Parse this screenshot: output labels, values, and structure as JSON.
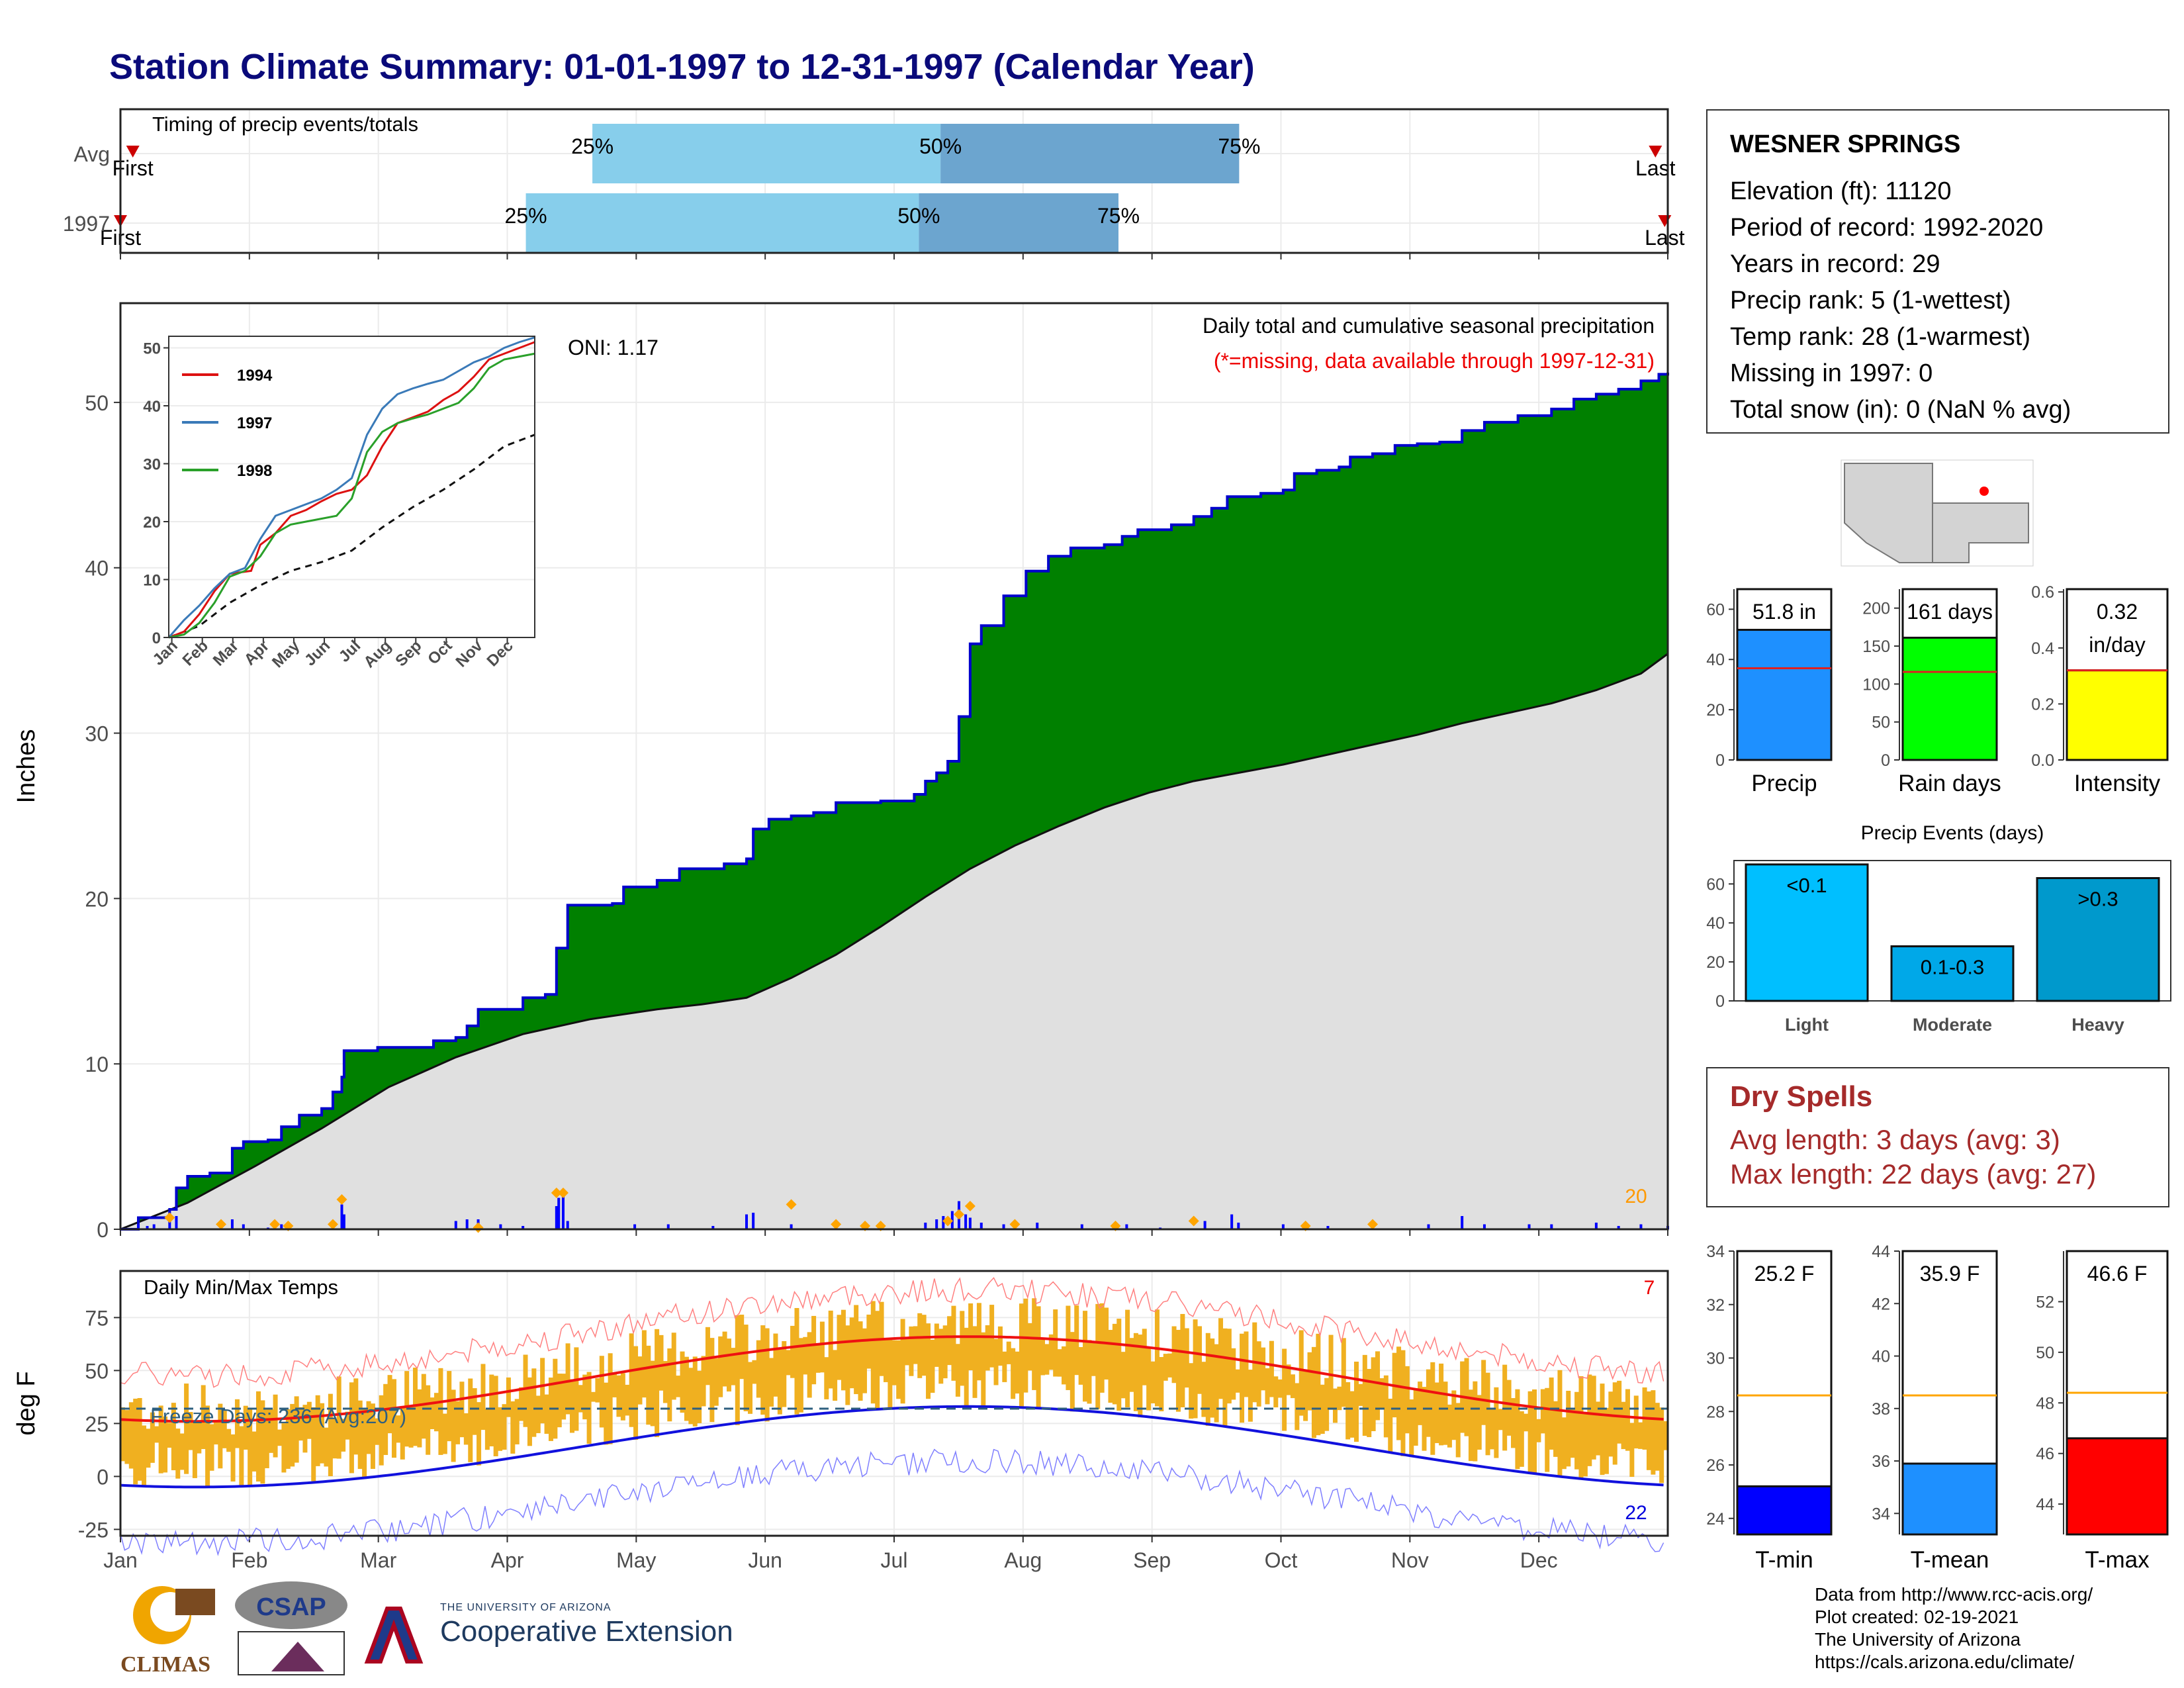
{
  "title": "Station Climate Summary: 01-01-1997 to 12-31-1997 (Calendar Year)",
  "colors": {
    "title": "#0a0a7a",
    "precip_area": "#008000",
    "precip_line": "#0000cc",
    "normal_area": "#e0e0e0",
    "light_blue": "#87ceeb",
    "mid_blue": "#6ca5cf",
    "temp_bar": "#f0b020",
    "tmax_line": "#ee1111",
    "tmin_line": "#1111dd",
    "orange_marker": "#ffa500"
  },
  "timing": {
    "label": "Timing of precip events/totals",
    "rows": [
      {
        "name": "Avg",
        "p25_label": "25%",
        "p50_label": "50%",
        "p75_label": "75%",
        "first": "First",
        "last": "Last",
        "p25": 0.305,
        "p50": 0.53,
        "p75": 0.723,
        "first_frac": 0.008,
        "last_frac": 0.992
      },
      {
        "name": "1997",
        "p25_label": "25%",
        "p50_label": "50%",
        "p75_label": "75%",
        "first": "First",
        "last": "Last",
        "p25": 0.262,
        "p50": 0.516,
        "p75": 0.645,
        "first_frac": 0.0,
        "last_frac": 0.998
      }
    ]
  },
  "station": {
    "name": "WESNER SPRINGS",
    "lines": [
      "Elevation (ft): 11120",
      "Period of record: 1992-2020",
      "Years in record: 29",
      "Precip rank: 5 (1-wettest)",
      "Temp rank: 28 (1-warmest)",
      "Missing in 1997: 0",
      "Total snow (in): 0 (NaN % avg)"
    ]
  },
  "main_chart": {
    "ylabel": "Inches",
    "caption1": "Daily total and cumulative seasonal precipitation",
    "caption2": "(*=missing, data available through 1997-12-31)",
    "oni": "ONI: 1.17",
    "corner_count": "20",
    "ylim": [
      0,
      56
    ],
    "yticks": [
      0,
      10,
      20,
      30,
      40,
      50
    ],
    "cum_1997": [
      [
        0,
        0
      ],
      [
        8,
        0.7
      ],
      [
        22,
        1.2
      ],
      [
        25,
        2.5
      ],
      [
        30,
        3.2
      ],
      [
        40,
        3.4
      ],
      [
        50,
        4.9
      ],
      [
        55,
        5.3
      ],
      [
        66,
        5.4
      ],
      [
        72,
        6.2
      ],
      [
        80,
        6.9
      ],
      [
        90,
        7.3
      ],
      [
        95,
        8.3
      ],
      [
        99,
        9.2
      ],
      [
        100,
        10.8
      ],
      [
        115,
        11
      ],
      [
        140,
        11.4
      ],
      [
        150,
        11.6
      ],
      [
        155,
        12.3
      ],
      [
        160,
        13.3
      ],
      [
        180,
        14
      ],
      [
        190,
        14.2
      ],
      [
        195,
        17
      ],
      [
        200,
        19.6
      ],
      [
        220,
        19.7
      ],
      [
        225,
        20.7
      ],
      [
        240,
        21.1
      ],
      [
        250,
        21.8
      ],
      [
        270,
        22.1
      ],
      [
        280,
        22.4
      ],
      [
        283,
        24.2
      ],
      [
        290,
        24.8
      ],
      [
        300,
        25
      ],
      [
        310,
        25.2
      ],
      [
        320,
        25.8
      ],
      [
        340,
        25.9
      ],
      [
        355,
        26.3
      ],
      [
        360,
        27.1
      ],
      [
        365,
        27.6
      ],
      [
        370,
        28.3
      ],
      [
        375,
        31
      ],
      [
        380,
        35.4
      ],
      [
        385,
        36.5
      ],
      [
        395,
        38.3
      ],
      [
        405,
        39.8
      ],
      [
        415,
        40.7
      ],
      [
        425,
        41.2
      ],
      [
        440,
        41.4
      ],
      [
        448,
        41.9
      ],
      [
        455,
        42.3
      ],
      [
        470,
        42.6
      ],
      [
        480,
        43.1
      ],
      [
        488,
        43.6
      ],
      [
        495,
        44.3
      ],
      [
        510,
        44.5
      ],
      [
        520,
        44.7
      ],
      [
        525,
        45.7
      ],
      [
        535,
        45.9
      ],
      [
        545,
        46.1
      ],
      [
        550,
        46.7
      ],
      [
        560,
        46.9
      ],
      [
        570,
        47.4
      ],
      [
        580,
        47.5
      ],
      [
        590,
        47.6
      ],
      [
        600,
        48.3
      ],
      [
        610,
        48.8
      ],
      [
        625,
        49.2
      ],
      [
        640,
        49.6
      ],
      [
        650,
        50.2
      ],
      [
        660,
        50.5
      ],
      [
        670,
        50.8
      ],
      [
        680,
        51.3
      ],
      [
        688,
        51.7
      ],
      [
        692,
        51.8
      ]
    ],
    "cum_normal": [
      [
        0,
        0
      ],
      [
        30,
        1.6
      ],
      [
        60,
        3.8
      ],
      [
        90,
        6.1
      ],
      [
        120,
        8.6
      ],
      [
        150,
        10.4
      ],
      [
        180,
        11.8
      ],
      [
        210,
        12.7
      ],
      [
        240,
        13.3
      ],
      [
        260,
        13.6
      ],
      [
        280,
        14
      ],
      [
        300,
        15.2
      ],
      [
        320,
        16.6
      ],
      [
        340,
        18.3
      ],
      [
        360,
        20.1
      ],
      [
        380,
        21.8
      ],
      [
        400,
        23.2
      ],
      [
        420,
        24.4
      ],
      [
        440,
        25.5
      ],
      [
        460,
        26.4
      ],
      [
        480,
        27.1
      ],
      [
        500,
        27.6
      ],
      [
        520,
        28.1
      ],
      [
        540,
        28.7
      ],
      [
        560,
        29.3
      ],
      [
        580,
        29.9
      ],
      [
        600,
        30.6
      ],
      [
        620,
        31.2
      ],
      [
        640,
        31.8
      ],
      [
        660,
        32.6
      ],
      [
        680,
        33.6
      ],
      [
        692,
        34.8
      ]
    ],
    "daily_bars": [
      [
        8,
        0.3
      ],
      [
        12,
        0.2
      ],
      [
        15,
        0.3
      ],
      [
        22,
        0.9
      ],
      [
        25,
        0.8
      ],
      [
        45,
        0.4
      ],
      [
        50,
        0.6
      ],
      [
        55,
        0.3
      ],
      [
        66,
        0.1
      ],
      [
        72,
        0.3
      ],
      [
        95,
        0.5
      ],
      [
        99,
        1.5
      ],
      [
        100,
        0.9
      ],
      [
        150,
        0.5
      ],
      [
        155,
        0.6
      ],
      [
        160,
        0.6
      ],
      [
        170,
        0.3
      ],
      [
        180,
        0.2
      ],
      [
        195,
        1.4
      ],
      [
        196,
        1.9
      ],
      [
        198,
        2.1
      ],
      [
        200,
        0.5
      ],
      [
        230,
        0.3
      ],
      [
        245,
        0.3
      ],
      [
        265,
        0.2
      ],
      [
        280,
        0.9
      ],
      [
        283,
        1
      ],
      [
        300,
        0.3
      ],
      [
        320,
        0.4
      ],
      [
        340,
        0.2
      ],
      [
        360,
        0.4
      ],
      [
        365,
        0.6
      ],
      [
        368,
        0.8
      ],
      [
        372,
        1.1
      ],
      [
        375,
        1.7
      ],
      [
        378,
        0.9
      ],
      [
        380,
        0.7
      ],
      [
        385,
        0.4
      ],
      [
        395,
        0.3
      ],
      [
        410,
        0.4
      ],
      [
        430,
        0.3
      ],
      [
        450,
        0.3
      ],
      [
        465,
        0.1
      ],
      [
        485,
        0.5
      ],
      [
        497,
        0.9
      ],
      [
        500,
        0.4
      ],
      [
        520,
        0.3
      ],
      [
        540,
        0.2
      ],
      [
        560,
        0.4
      ],
      [
        585,
        0.3
      ],
      [
        600,
        0.8
      ],
      [
        610,
        0.3
      ],
      [
        630,
        0.3
      ],
      [
        640,
        0.3
      ],
      [
        660,
        0.4
      ],
      [
        670,
        0.2
      ],
      [
        680,
        0.3
      ],
      [
        692,
        0.2
      ]
    ],
    "orange_markers": [
      [
        22,
        0.7
      ],
      [
        45,
        0.3
      ],
      [
        69,
        0.3
      ],
      [
        75,
        0.2
      ],
      [
        95,
        0.3
      ],
      [
        99,
        1.8
      ],
      [
        160,
        0.1
      ],
      [
        195,
        2.2
      ],
      [
        198,
        2.2
      ],
      [
        300,
        1.5
      ],
      [
        320,
        0.3
      ],
      [
        333,
        0.2
      ],
      [
        340,
        0.2
      ],
      [
        370,
        0.5
      ],
      [
        375,
        0.9
      ],
      [
        380,
        1.4
      ],
      [
        400,
        0.3
      ],
      [
        445,
        0.2
      ],
      [
        480,
        0.5
      ],
      [
        530,
        0.2
      ],
      [
        560,
        0.3
      ]
    ]
  },
  "inset": {
    "series": [
      {
        "name": "1994",
        "color": "#dd1111"
      },
      {
        "name": "1997",
        "color": "#3a7ab8"
      },
      {
        "name": "1998",
        "color": "#2aa02a"
      }
    ],
    "xticks": [
      "Jan",
      "Feb",
      "Mar",
      "Apr",
      "May",
      "Jun",
      "Jul",
      "Aug",
      "Sep",
      "Oct",
      "Nov",
      "Dec"
    ],
    "yticks": [
      0,
      10,
      20,
      30,
      40,
      50
    ],
    "ylim": [
      0,
      52
    ],
    "lines": {
      "1994": [
        [
          0,
          0
        ],
        [
          0.5,
          1
        ],
        [
          1,
          4
        ],
        [
          1.5,
          8
        ],
        [
          2,
          11
        ],
        [
          2.7,
          11.5
        ],
        [
          3,
          16
        ],
        [
          3.5,
          18
        ],
        [
          4,
          21
        ],
        [
          4.5,
          22
        ],
        [
          5,
          23.5
        ],
        [
          5.5,
          24.8
        ],
        [
          6,
          25.5
        ],
        [
          6.5,
          28
        ],
        [
          7,
          33
        ],
        [
          7.5,
          37
        ],
        [
          8,
          38
        ],
        [
          8.5,
          39
        ],
        [
          9,
          41
        ],
        [
          9.5,
          42.5
        ],
        [
          10,
          45
        ],
        [
          10.5,
          48
        ],
        [
          11,
          49
        ],
        [
          11.5,
          50
        ],
        [
          12,
          51
        ]
      ],
      "1997": [
        [
          0,
          0
        ],
        [
          0.5,
          3
        ],
        [
          1,
          5.5
        ],
        [
          1.5,
          8.5
        ],
        [
          2,
          11
        ],
        [
          2.5,
          12
        ],
        [
          3,
          17
        ],
        [
          3.5,
          21
        ],
        [
          4,
          22
        ],
        [
          4.5,
          23
        ],
        [
          5,
          24
        ],
        [
          5.5,
          25.5
        ],
        [
          6,
          27.5
        ],
        [
          6.5,
          35
        ],
        [
          7,
          39.5
        ],
        [
          7.5,
          42
        ],
        [
          8,
          43
        ],
        [
          8.5,
          43.8
        ],
        [
          9,
          44.5
        ],
        [
          9.5,
          46
        ],
        [
          10,
          47.5
        ],
        [
          10.5,
          48.5
        ],
        [
          11,
          50
        ],
        [
          11.5,
          51
        ],
        [
          12,
          51.8
        ]
      ],
      "1998": [
        [
          0,
          0
        ],
        [
          0.5,
          0.5
        ],
        [
          1,
          2.5
        ],
        [
          1.5,
          6
        ],
        [
          2,
          10.5
        ],
        [
          2.5,
          11.5
        ],
        [
          3,
          14
        ],
        [
          3.5,
          18
        ],
        [
          4,
          19.5
        ],
        [
          4.5,
          20
        ],
        [
          5,
          20.5
        ],
        [
          5.5,
          21
        ],
        [
          6,
          24
        ],
        [
          6.5,
          32
        ],
        [
          7,
          35.5
        ],
        [
          7.5,
          37
        ],
        [
          8,
          37.8
        ],
        [
          8.5,
          38.5
        ],
        [
          9,
          39.5
        ],
        [
          9.5,
          40.5
        ],
        [
          10,
          43
        ],
        [
          10.5,
          46.5
        ],
        [
          11,
          48
        ],
        [
          11.5,
          48.5
        ],
        [
          12,
          49
        ]
      ],
      "normal": [
        [
          0,
          0
        ],
        [
          1,
          2
        ],
        [
          2,
          6
        ],
        [
          3,
          9
        ],
        [
          4,
          11.5
        ],
        [
          5,
          13
        ],
        [
          6,
          15
        ],
        [
          7,
          19
        ],
        [
          8,
          22.5
        ],
        [
          9,
          25.5
        ],
        [
          10,
          29
        ],
        [
          11,
          33
        ],
        [
          12,
          35
        ]
      ]
    }
  },
  "bar_stats": [
    {
      "label": "Precip",
      "value_label": "51.8 in",
      "value": 51.8,
      "avg": 36.5,
      "ylim": [
        0,
        68
      ],
      "yticks": [
        0,
        20,
        40,
        60
      ],
      "color": "#1e90ff"
    },
    {
      "label": "Rain days",
      "value_label": "161 days",
      "value": 161,
      "avg": 116,
      "ylim": [
        0,
        225
      ],
      "yticks": [
        0,
        50,
        100,
        150,
        200
      ],
      "color": "#00ff00"
    },
    {
      "label": "Intensity",
      "value_label": "0.32",
      "value_label2": "in/day",
      "value": 0.32,
      "avg": 0.32,
      "ylim": [
        0,
        0.61
      ],
      "yticks": [
        "0.0",
        "0.2",
        "0.4",
        "0.6"
      ],
      "color": "#ffff00"
    }
  ],
  "precip_events": {
    "title": "Precip Events (days)",
    "yticks": [
      0,
      20,
      40,
      60
    ],
    "ylim": [
      0,
      72
    ],
    "bars": [
      {
        "label": "Light",
        "inner": "<0.1",
        "value": 70,
        "color": "#00bfff"
      },
      {
        "label": "Moderate",
        "inner": "0.1-0.3",
        "value": 28,
        "color": "#00a8e8"
      },
      {
        "label": "Heavy",
        "inner": ">0.3",
        "value": 63,
        "color": "#0099cc"
      }
    ]
  },
  "dry_spells": {
    "title": "Dry Spells",
    "avg_length": "Avg length: 3 days (avg: 3)",
    "max_length": "Max length: 22 days (avg: 27)"
  },
  "temp_chart": {
    "label": "Daily Min/Max Temps",
    "ylabel": "deg F",
    "freeze": "Freeze Days: 236 (Avg:207)",
    "count_hot": "7",
    "count_cold": "22",
    "ylim": [
      -28,
      97
    ],
    "yticks": [
      -25,
      0,
      25,
      50,
      75
    ],
    "months": [
      "Jan",
      "Feb",
      "Mar",
      "Apr",
      "May",
      "Jun",
      "Jul",
      "Aug",
      "Sep",
      "Oct",
      "Nov",
      "Dec"
    ],
    "freeze_line": 32
  },
  "temp_stats": [
    {
      "label": "T-min",
      "value_label": "25.2 F",
      "value": 25.2,
      "avg": 28.6,
      "ylim": [
        23.4,
        34
      ],
      "yticks": [
        24,
        26,
        28,
        30,
        32,
        34
      ],
      "color": "#0000ff"
    },
    {
      "label": "T-mean",
      "value_label": "35.9 F",
      "value": 35.9,
      "avg": 38.5,
      "ylim": [
        33.2,
        44
      ],
      "yticks": [
        34,
        36,
        38,
        40,
        42,
        44
      ],
      "color": "#1e90ff"
    },
    {
      "label": "T-max",
      "value_label": "46.6 F",
      "value": 46.6,
      "avg": 48.4,
      "ylim": [
        42.8,
        54
      ],
      "yticks": [
        44,
        46,
        48,
        50,
        52
      ],
      "color": "#ff0000"
    }
  ],
  "credits": [
    "Data from http://www.rcc-acis.org/",
    "Plot created: 02-19-2021",
    "The University of Arizona",
    "https://cals.arizona.edu/climate/"
  ],
  "logos": {
    "climas": "CLIMAS",
    "csap": "CSAP",
    "coop_top": "THE UNIVERSITY OF ARIZONA",
    "coop": "Cooperative Extension"
  }
}
